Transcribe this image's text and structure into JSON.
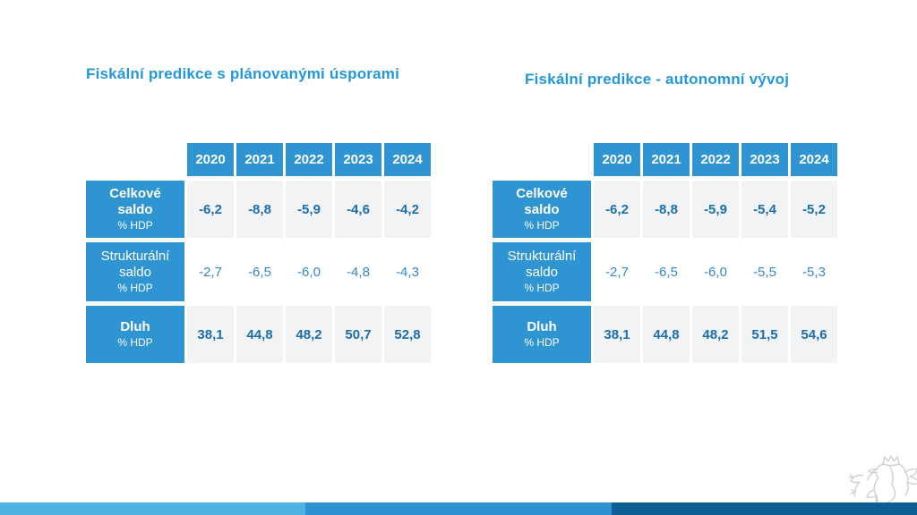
{
  "slide": {
    "tables": [
      {
        "title": "Fiskální predikce s plánovanými úsporami",
        "years": [
          "2020",
          "2021",
          "2022",
          "2023",
          "2024"
        ],
        "rows": [
          {
            "label": "Celkové saldo",
            "unit": "% HDP",
            "emphasis": true,
            "values": [
              "-6,2",
              "-8,8",
              "-5,9",
              "-4,6",
              "-4,2"
            ]
          },
          {
            "label": "Strukturální saldo",
            "unit": "% HDP",
            "emphasis": false,
            "values": [
              "-2,7",
              "-6,5",
              "-6,0",
              "-4,8",
              "-4,3"
            ]
          },
          {
            "label": "Dluh",
            "unit": "% HDP",
            "emphasis": true,
            "values": [
              "38,1",
              "44,8",
              "48,2",
              "50,7",
              "52,8"
            ]
          }
        ]
      },
      {
        "title": "Fiskální predikce - autonomní vývoj",
        "years": [
          "2020",
          "2021",
          "2022",
          "2023",
          "2024"
        ],
        "rows": [
          {
            "label": "Celkové saldo",
            "unit": "% HDP",
            "emphasis": true,
            "values": [
              "-6,2",
              "-8,8",
              "-5,9",
              "-5,4",
              "-5,2"
            ]
          },
          {
            "label": "Strukturální saldo",
            "unit": "% HDP",
            "emphasis": false,
            "values": [
              "-2,7",
              "-6,5",
              "-6,0",
              "-5,5",
              "-5,3"
            ]
          },
          {
            "label": "Dluh",
            "unit": "% HDP",
            "emphasis": true,
            "values": [
              "38,1",
              "44,8",
              "48,2",
              "51,5",
              "54,6"
            ]
          }
        ]
      }
    ],
    "footer": {
      "bar_colors": [
        "#4FB2E3",
        "#2E91D1",
        "#0E5E96"
      ]
    },
    "icons": {
      "lion_emblem": "czech-lion-outline-icon"
    },
    "colors": {
      "accent_blue": "#2E94D2",
      "title_blue": "#2298DB",
      "value_dark": "#1C6FAC",
      "value_light": "#3787C2",
      "cell_gray": "#F2F3F5",
      "lion_gray": "#C9CED3"
    }
  }
}
